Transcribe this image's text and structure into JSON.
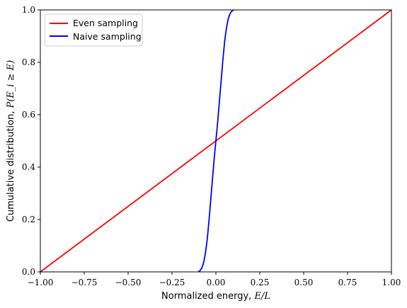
{
  "chart_data": {
    "type": "line",
    "xlabel_text": "Normalized energy, ",
    "xlabel_math": "E/L",
    "ylabel_text": "Cumulative distribution, ",
    "ylabel_math": "P(E_i ≥ E)",
    "xlim": [
      -1.0,
      1.0
    ],
    "ylim": [
      0.0,
      1.0
    ],
    "xticks": [
      -1.0,
      -0.75,
      -0.5,
      -0.25,
      0.0,
      0.25,
      0.5,
      0.75,
      1.0
    ],
    "xtick_labels": [
      "−1.00",
      "−0.75",
      "−0.50",
      "−0.25",
      "0.00",
      "0.25",
      "0.50",
      "0.75",
      "1.00"
    ],
    "yticks": [
      0.0,
      0.2,
      0.4,
      0.6,
      0.8,
      1.0
    ],
    "ytick_labels": [
      "0.0",
      "0.2",
      "0.4",
      "0.6",
      "0.8",
      "1.0"
    ],
    "grid": false,
    "legend": {
      "placement": "top-left"
    },
    "series": [
      {
        "name": "Even sampling",
        "color": "#ff0000",
        "x": [
          -1.0,
          1.0
        ],
        "y": [
          0.0,
          1.0
        ]
      },
      {
        "name": "Naive sampling",
        "color": "#0000ff",
        "x": [
          -0.1,
          -0.09,
          -0.08,
          -0.07,
          -0.06,
          -0.05,
          -0.04,
          -0.03,
          -0.02,
          -0.01,
          0.0,
          0.01,
          0.02,
          0.03,
          0.04,
          0.05,
          0.06,
          0.07,
          0.08,
          0.09,
          0.1
        ],
        "y": [
          0.0,
          0.005,
          0.015,
          0.035,
          0.07,
          0.12,
          0.19,
          0.27,
          0.35,
          0.43,
          0.5,
          0.57,
          0.65,
          0.73,
          0.81,
          0.88,
          0.93,
          0.965,
          0.985,
          0.995,
          1.0
        ]
      }
    ]
  }
}
